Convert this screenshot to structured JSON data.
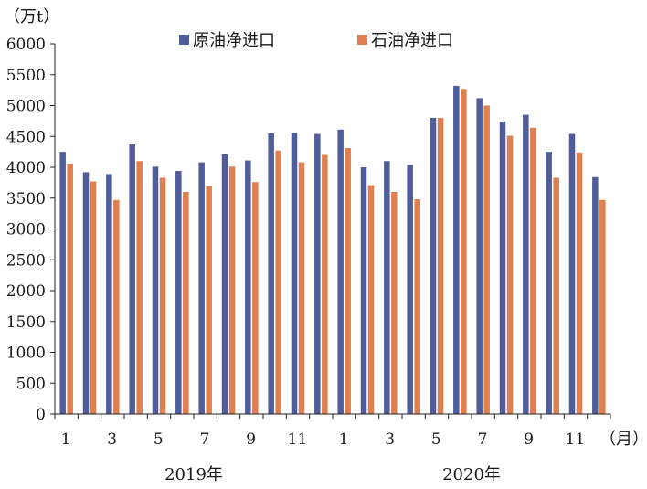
{
  "chart_data": {
    "type": "bar",
    "y_unit_label": "（万t）",
    "x_unit_label": "（月）",
    "ylim": [
      0,
      6000
    ],
    "yticks": [
      0,
      500,
      1000,
      1500,
      2000,
      2500,
      3000,
      3500,
      4000,
      4500,
      5000,
      5500,
      6000
    ],
    "grid": false,
    "legend_placement": "top",
    "categories": [
      "2019-01",
      "2019-02",
      "2019-03",
      "2019-04",
      "2019-05",
      "2019-06",
      "2019-07",
      "2019-08",
      "2019-09",
      "2019-10",
      "2019-11",
      "2019-12",
      "2020-01",
      "2020-02",
      "2020-03",
      "2020-04",
      "2020-05",
      "2020-06",
      "2020-07",
      "2020-08",
      "2020-09",
      "2020-10",
      "2020-11",
      "2020-12"
    ],
    "x_tick_labels": [
      "1",
      "",
      "3",
      "",
      "5",
      "",
      "7",
      "",
      "9",
      "",
      "11",
      "",
      "1",
      "",
      "3",
      "",
      "5",
      "",
      "7",
      "",
      "9",
      "",
      "11",
      ""
    ],
    "year_labels": [
      {
        "label": "2019年",
        "center_category_index": 5.5
      },
      {
        "label": "2020年",
        "center_category_index": 17.5
      }
    ],
    "series": [
      {
        "name": "原油净进口",
        "color": "#4F5D9B",
        "values": [
          4250,
          3920,
          3890,
          4370,
          4010,
          3940,
          4080,
          4210,
          4110,
          4550,
          4560,
          4540,
          4610,
          4000,
          4100,
          4040,
          4800,
          5320,
          5120,
          4740,
          4850,
          4250,
          4540,
          3840
        ]
      },
      {
        "name": "石油净进口",
        "color": "#E07F4F",
        "values": [
          4060,
          3770,
          3470,
          4100,
          3830,
          3600,
          3690,
          4010,
          3760,
          4270,
          4080,
          4200,
          4310,
          3710,
          3600,
          3480,
          4800,
          5270,
          5000,
          4510,
          4640,
          3830,
          4240,
          3470
        ]
      }
    ]
  }
}
